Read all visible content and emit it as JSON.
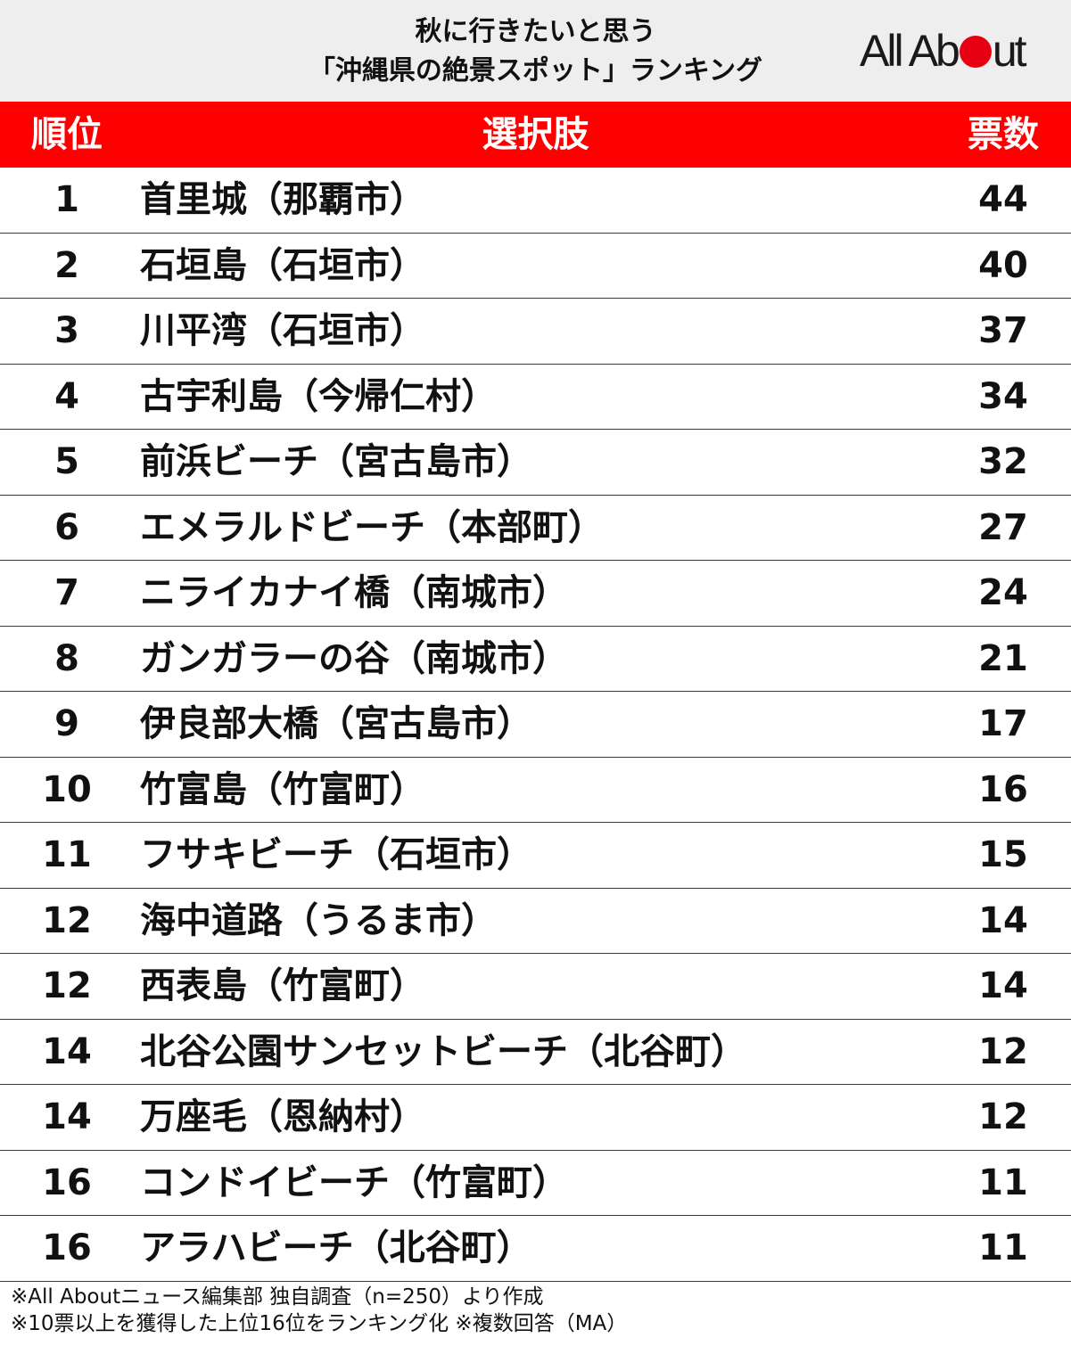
{
  "header": {
    "title_line1": "秋に行きたいと思う",
    "title_line2": "「沖縄県の絶景スポット」ランキング",
    "logo_pre": "All Ab",
    "logo_post": "ut",
    "logo_dot_color": "#e60012"
  },
  "chart_data": {
    "type": "table",
    "columns": [
      "順位",
      "選択肢",
      "票数"
    ],
    "rows": [
      {
        "rank": "1",
        "name": "首里城（那覇市）",
        "votes": "44"
      },
      {
        "rank": "2",
        "name": "石垣島（石垣市）",
        "votes": "40"
      },
      {
        "rank": "3",
        "name": "川平湾（石垣市）",
        "votes": "37"
      },
      {
        "rank": "4",
        "name": "古宇利島（今帰仁村）",
        "votes": "34"
      },
      {
        "rank": "5",
        "name": "前浜ビーチ（宮古島市）",
        "votes": "32"
      },
      {
        "rank": "6",
        "name": "エメラルドビーチ（本部町）",
        "votes": "27"
      },
      {
        "rank": "7",
        "name": "ニライカナイ橋（南城市）",
        "votes": "24"
      },
      {
        "rank": "8",
        "name": "ガンガラーの谷（南城市）",
        "votes": "21"
      },
      {
        "rank": "9",
        "name": "伊良部大橋（宮古島市）",
        "votes": "17"
      },
      {
        "rank": "10",
        "name": "竹富島（竹富町）",
        "votes": "16"
      },
      {
        "rank": "11",
        "name": "フサキビーチ（石垣市）",
        "votes": "15"
      },
      {
        "rank": "12",
        "name": "海中道路（うるま市）",
        "votes": "14"
      },
      {
        "rank": "12",
        "name": "西表島（竹富町）",
        "votes": "14"
      },
      {
        "rank": "14",
        "name": "北谷公園サンセットビーチ（北谷町）",
        "votes": "12"
      },
      {
        "rank": "14",
        "name": "万座毛（恩納村）",
        "votes": "12"
      },
      {
        "rank": "16",
        "name": "コンドイビーチ（竹富町）",
        "votes": "11"
      },
      {
        "rank": "16",
        "name": "アラハビーチ（北谷町）",
        "votes": "11"
      }
    ],
    "header_color": "#ff0000"
  },
  "footer": {
    "note1": "※All Aboutニュース編集部 独自調査（n=250）より作成",
    "note2": "※10票以上を獲得した上位16位をランキング化 ※複数回答（MA）"
  }
}
